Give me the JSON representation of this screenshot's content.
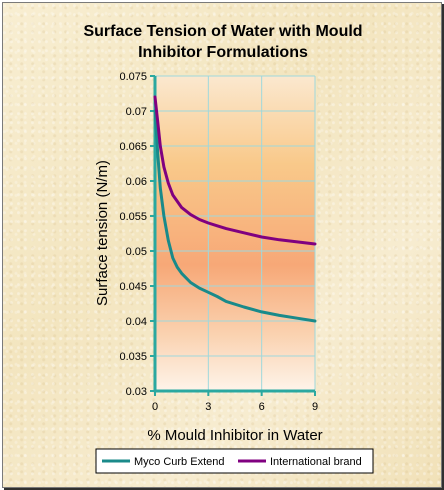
{
  "chart_data": {
    "type": "line",
    "title_line1": "Surface Tension of Water with Mould",
    "title_line2": "Inhibitor Formulations",
    "xlabel": "% Mould Inhibitor in Water",
    "ylabel": "Surface tension (N/m)",
    "xlim": [
      0,
      9
    ],
    "ylim": [
      0.03,
      0.075
    ],
    "x_ticks": [
      0,
      3,
      6,
      9
    ],
    "x_tick_labels": [
      "0",
      "3",
      "6",
      "9"
    ],
    "y_ticks": [
      0.03,
      0.035,
      0.04,
      0.045,
      0.05,
      0.055,
      0.06,
      0.065,
      0.07,
      0.075
    ],
    "y_tick_labels": [
      "0.03",
      "0.035",
      "0.04",
      "0.045",
      "0.05",
      "0.055",
      "0.06",
      "0.065",
      "0.07",
      "0.075"
    ],
    "grid": true,
    "legend_position": "bottom",
    "series": [
      {
        "name": "Myco Curb Extend",
        "color": "#1a8a8a",
        "x": [
          0,
          0.15,
          0.3,
          0.5,
          0.75,
          1,
          1.25,
          1.5,
          2,
          2.5,
          3,
          3.5,
          4,
          5,
          6,
          7,
          8,
          9
        ],
        "y": [
          0.07,
          0.064,
          0.059,
          0.055,
          0.0515,
          0.049,
          0.0477,
          0.0468,
          0.0455,
          0.0447,
          0.0441,
          0.0435,
          0.0428,
          0.042,
          0.0413,
          0.0408,
          0.0404,
          0.04
        ]
      },
      {
        "name": "International brand",
        "color": "#800080",
        "x": [
          0,
          0.15,
          0.3,
          0.5,
          0.75,
          1,
          1.5,
          2,
          2.5,
          3,
          3.5,
          4,
          5,
          6,
          7,
          8,
          9
        ],
        "y": [
          0.072,
          0.0685,
          0.065,
          0.062,
          0.0597,
          0.058,
          0.0562,
          0.0552,
          0.0545,
          0.054,
          0.0536,
          0.0532,
          0.0526,
          0.052,
          0.0516,
          0.0513,
          0.051
        ]
      }
    ]
  }
}
